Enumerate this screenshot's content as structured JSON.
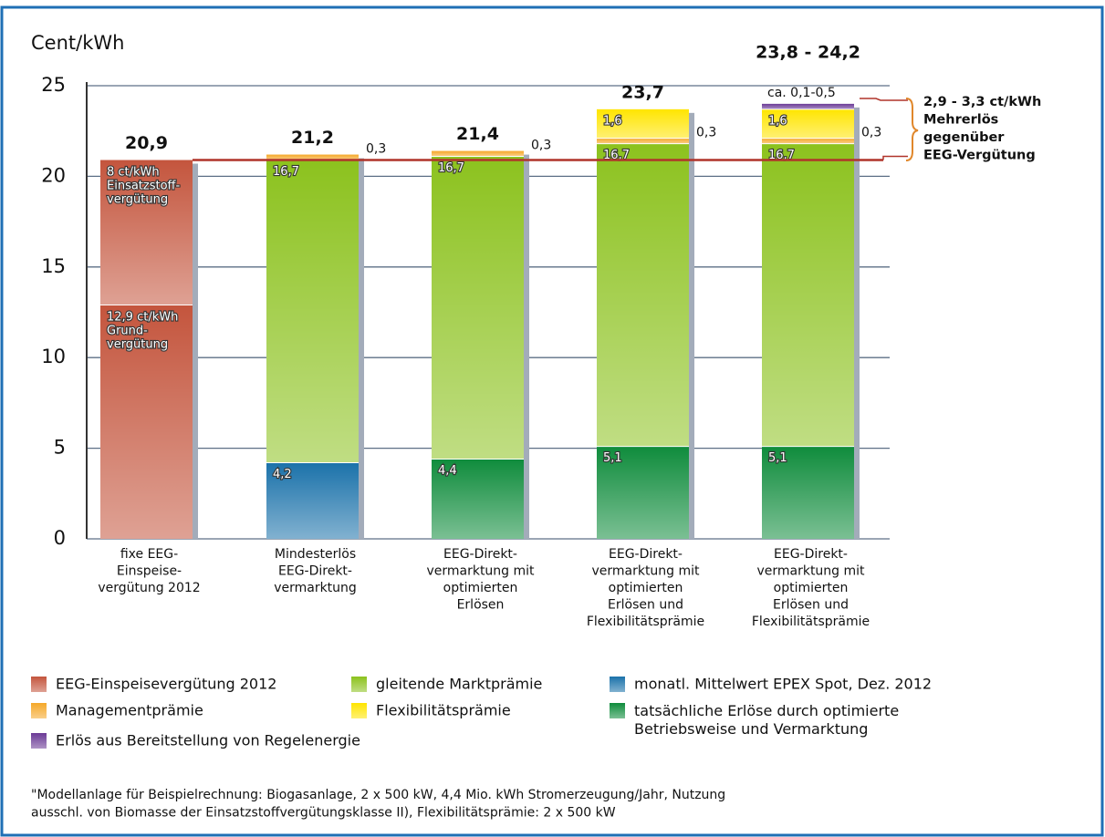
{
  "chart_data": {
    "type": "stacked_bar",
    "y_label": "Cent/kWh",
    "categories": [
      "fixe EEG-\nEinspeise-\nvergütung 2012",
      "Mindesterlös\nEEG-Direkt-\nvermarktung",
      "EEG-Direkt-\nvermarktung mit\noptimierten\nErlösen",
      "EEG-Direkt-\nvermarktung mit\noptimierten\nErlösen und\nFlexibilitätsprämie",
      "EEG-Direkt-\nvermarktung mit\noptimierten\nErlösen und\nFlexibilitätsprämie"
    ],
    "series": [
      {
        "name": "EEG-Einspeisevergütung 2012",
        "color": "#c4553d",
        "values": [
          12.9,
          null,
          null,
          null,
          null
        ],
        "value_labels": [
          "12,9 ct/kWh\nGrund-\nvergütung",
          null,
          null,
          null,
          null
        ]
      },
      {
        "color": "#c4553d",
        "values": [
          8,
          null,
          null,
          null,
          null
        ],
        "value_labels": [
          "8 ct/kWh\nEinsatzstoff-\nvergütung",
          null,
          null,
          null,
          null
        ]
      },
      {
        "name": "monatl. Mittelwert EPEX Spot, Dez. 2012",
        "color": "#1b72aa",
        "values": [
          null,
          4.2,
          null,
          null,
          null
        ],
        "value_labels": [
          null,
          "4,2",
          null,
          null,
          null
        ]
      },
      {
        "name": "tatsächliche Erlöse durch optimierte\nBetriebsweise und Vermarktung",
        "color": "#0f8c3c",
        "values": [
          null,
          null,
          4.4,
          5.1,
          5.1
        ],
        "value_labels": [
          null,
          null,
          "4,4",
          "5,1",
          "5,1"
        ]
      },
      {
        "name": "gleitende Marktprämie",
        "color": "#8cc21e",
        "values": [
          null,
          16.7,
          16.7,
          16.7,
          16.7
        ],
        "value_labels": [
          null,
          "16,7",
          "16,7",
          "16,7",
          "16,7"
        ]
      },
      {
        "name": "Managementprämie",
        "color": "#f5a829",
        "values": [
          null,
          0.3,
          0.3,
          0.3,
          0.3
        ],
        "value_labels": [
          null,
          "0,3",
          "0,3",
          "0,3",
          "0,3"
        ]
      },
      {
        "name": "Flexibilitätsprämie",
        "color": "#ffe500",
        "values": [
          null,
          null,
          null,
          1.6,
          1.6
        ],
        "value_labels": [
          null,
          null,
          null,
          "1,6",
          "1,6"
        ]
      },
      {
        "name": "Erlös aus Bereitstellung von Regelenergie",
        "color": "#6b3a96",
        "values": [
          null,
          null,
          null,
          null,
          0.3
        ],
        "value_labels": [
          null,
          null,
          null,
          null,
          "ca. 0,1-0,5"
        ]
      }
    ],
    "total_labels": [
      "20,9",
      "21,2",
      "21,4",
      "23,7",
      "23,8 - 24,2"
    ],
    "reference_line": 20.9,
    "annotation": "2,9 - 3,3 ct/kWh\nMehrerlös\ngegenüber\nEEG-Vergütung",
    "ylim": [
      0,
      25
    ],
    "yticks": [
      0,
      5,
      10,
      15,
      20,
      25
    ],
    "grid": true,
    "footnote": "\"Modellanlage für Beispielrechnung: Biogasanlage, 2 x 500 kW, 4,4 Mio. kWh Stromerzeugung/Jahr, Nutzung\nausschl. von Biomasse der Einsatzstoffvergütungsklasse II), Flexibilitätsprämie: 2 x 500 kW"
  }
}
